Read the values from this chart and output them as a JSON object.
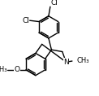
{
  "background": "#ffffff",
  "line_color": "#000000",
  "lw": 1.0,
  "font_size": 6.5,
  "figsize": [
    1.22,
    1.18
  ],
  "dpi": 100,
  "xlim": [
    0.0,
    1.0
  ],
  "ylim": [
    0.0,
    1.0
  ]
}
